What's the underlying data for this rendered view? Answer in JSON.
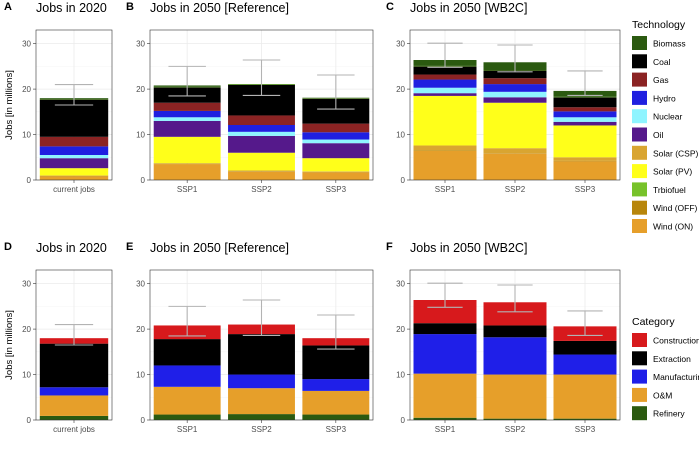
{
  "colors": {
    "Biomass": "#2b5a10",
    "Coal": "#000000",
    "Gas": "#8b2323",
    "Hydro": "#1f1fe0",
    "Nuclear": "#8ff4ff",
    "Oil": "#55198b",
    "Solar (CSP)": "#d9a531",
    "Solar (PV)": "#ffff1a",
    "Trbiofuel": "#77c22a",
    "Wind (OFF)": "#b8860b",
    "Wind (ON)": "#e69f2a",
    "Construction": "#d7191c",
    "Extraction": "#000000",
    "Manufacturing": "#1f1fe8",
    "O&M": "#e69f2a",
    "Refinery": "#2b5a10"
  },
  "legends": [
    {
      "title": "Technology",
      "entries": [
        "Biomass",
        "Coal",
        "Gas",
        "Hydro",
        "Nuclear",
        "Oil",
        "Solar (CSP)",
        "Solar (PV)",
        "Trbiofuel",
        "Wind (OFF)",
        "Wind (ON)"
      ]
    },
    {
      "title": "Category",
      "entries": [
        "Construction",
        "Extraction",
        "Manufacturing",
        "O&M",
        "Refinery"
      ]
    }
  ],
  "chart_data": [
    {
      "letter": "A",
      "title": "Jobs in 2020",
      "type": "bar",
      "stacked": true,
      "ylabel": "Jobs [in millions]",
      "ylim": [
        0,
        33
      ],
      "yticks": [
        0,
        10,
        20,
        30
      ],
      "categories": [
        "current jobs"
      ],
      "series": [
        {
          "name": "Wind (ON)",
          "values": [
            0.8
          ]
        },
        {
          "name": "Wind (OFF)",
          "values": [
            0.1
          ]
        },
        {
          "name": "Solar (CSP)",
          "values": [
            0.1
          ]
        },
        {
          "name": "Solar (PV)",
          "values": [
            1.6
          ]
        },
        {
          "name": "Oil",
          "values": [
            2.2
          ]
        },
        {
          "name": "Nuclear",
          "values": [
            0.7
          ]
        },
        {
          "name": "Hydro",
          "values": [
            1.9
          ]
        },
        {
          "name": "Gas",
          "values": [
            2.1
          ]
        },
        {
          "name": "Coal",
          "values": [
            8.2
          ]
        },
        {
          "name": "Trbiofuel",
          "values": [
            0.1
          ]
        },
        {
          "name": "Biomass",
          "values": [
            0.2
          ]
        }
      ],
      "errors": [
        {
          "low": 16.5,
          "high": 21.0
        }
      ]
    },
    {
      "letter": "B",
      "title": "Jobs in 2050 [Reference]",
      "type": "bar",
      "stacked": true,
      "ylim": [
        0,
        33
      ],
      "yticks": [
        0,
        10,
        20,
        30
      ],
      "categories": [
        "SSP1",
        "SSP2",
        "SSP3"
      ],
      "series": [
        {
          "name": "Wind (ON)",
          "values": [
            3.5,
            1.8,
            1.7
          ]
        },
        {
          "name": "Wind (OFF)",
          "values": [
            0.1,
            0.1,
            0.1
          ]
        },
        {
          "name": "Solar (CSP)",
          "values": [
            0.1,
            0.2,
            0.1
          ]
        },
        {
          "name": "Solar (PV)",
          "values": [
            5.8,
            3.9,
            2.9
          ]
        },
        {
          "name": "Oil",
          "values": [
            3.5,
            3.7,
            3.3
          ]
        },
        {
          "name": "Nuclear",
          "values": [
            0.8,
            0.9,
            0.8
          ]
        },
        {
          "name": "Hydro",
          "values": [
            1.4,
            1.5,
            1.6
          ]
        },
        {
          "name": "Gas",
          "values": [
            1.8,
            2.1,
            1.9
          ]
        },
        {
          "name": "Coal",
          "values": [
            3.4,
            6.7,
            5.5
          ]
        },
        {
          "name": "Trbiofuel",
          "values": [
            0.1,
            0.1,
            0.1
          ]
        },
        {
          "name": "Biomass",
          "values": [
            0.3,
            0.1,
            0.1
          ]
        }
      ],
      "errors": [
        {
          "low": 18.5,
          "high": 25.0
        },
        {
          "low": 18.6,
          "high": 26.4
        },
        {
          "low": 15.6,
          "high": 23.1
        }
      ]
    },
    {
      "letter": "C",
      "title": "Jobs in 2050 [WB2C]",
      "type": "bar",
      "stacked": true,
      "ylim": [
        0,
        33
      ],
      "yticks": [
        0,
        10,
        20,
        30
      ],
      "categories": [
        "SSP1",
        "SSP2",
        "SSP3"
      ],
      "series": [
        {
          "name": "Wind (ON)",
          "values": [
            6.4,
            5.8,
            4.1
          ]
        },
        {
          "name": "Wind (OFF)",
          "values": [
            0.1,
            0.1,
            0.1
          ]
        },
        {
          "name": "Solar (CSP)",
          "values": [
            1.1,
            1.1,
            0.8
          ]
        },
        {
          "name": "Solar (PV)",
          "values": [
            10.9,
            10.0,
            7.0
          ]
        },
        {
          "name": "Oil",
          "values": [
            0.6,
            1.2,
            0.8
          ]
        },
        {
          "name": "Nuclear",
          "values": [
            1.2,
            1.2,
            1.0
          ]
        },
        {
          "name": "Hydro",
          "values": [
            1.8,
            1.7,
            1.3
          ]
        },
        {
          "name": "Gas",
          "values": [
            1.1,
            1.3,
            0.9
          ]
        },
        {
          "name": "Coal",
          "values": [
            1.8,
            1.7,
            2.2
          ]
        },
        {
          "name": "Trbiofuel",
          "values": [
            0.1,
            0.1,
            0.1
          ]
        },
        {
          "name": "Biomass",
          "values": [
            1.3,
            1.7,
            1.3
          ]
        }
      ],
      "errors": [
        {
          "low": 24.8,
          "high": 30.1
        },
        {
          "low": 23.8,
          "high": 29.7
        },
        {
          "low": 18.6,
          "high": 24.0
        }
      ]
    },
    {
      "letter": "D",
      "title": "Jobs in 2020",
      "type": "bar",
      "stacked": true,
      "ylabel": "Jobs [in millions]",
      "ylim": [
        0,
        33
      ],
      "yticks": [
        0,
        10,
        20,
        30
      ],
      "categories": [
        "current jobs"
      ],
      "series": [
        {
          "name": "Refinery",
          "values": [
            0.9
          ]
        },
        {
          "name": "O&M",
          "values": [
            4.5
          ]
        },
        {
          "name": "Manufacturing",
          "values": [
            1.8
          ]
        },
        {
          "name": "Extraction",
          "values": [
            9.6
          ]
        },
        {
          "name": "Construction",
          "values": [
            1.2
          ]
        }
      ],
      "errors": [
        {
          "low": 16.5,
          "high": 21.0
        }
      ]
    },
    {
      "letter": "E",
      "title": "Jobs in 2050 [Reference]",
      "type": "bar",
      "stacked": true,
      "ylim": [
        0,
        33
      ],
      "yticks": [
        0,
        10,
        20,
        30
      ],
      "categories": [
        "SSP1",
        "SSP2",
        "SSP3"
      ],
      "series": [
        {
          "name": "Refinery",
          "values": [
            1.2,
            1.3,
            1.2
          ]
        },
        {
          "name": "O&M",
          "values": [
            6.1,
            5.7,
            5.2
          ]
        },
        {
          "name": "Manufacturing",
          "values": [
            4.7,
            3.0,
            2.6
          ]
        },
        {
          "name": "Extraction",
          "values": [
            5.8,
            8.9,
            7.4
          ]
        },
        {
          "name": "Construction",
          "values": [
            3.0,
            2.1,
            1.6
          ]
        }
      ],
      "errors": [
        {
          "low": 18.5,
          "high": 25.0
        },
        {
          "low": 18.6,
          "high": 26.4
        },
        {
          "low": 15.6,
          "high": 23.1
        }
      ]
    },
    {
      "letter": "F",
      "title": "Jobs in 2050 [WB2C]",
      "type": "bar",
      "stacked": true,
      "ylim": [
        0,
        33
      ],
      "yticks": [
        0,
        10,
        20,
        30
      ],
      "categories": [
        "SSP1",
        "SSP2",
        "SSP3"
      ],
      "series": [
        {
          "name": "Refinery",
          "values": [
            0.5,
            0.3,
            0.3
          ]
        },
        {
          "name": "O&M",
          "values": [
            9.7,
            9.7,
            9.7
          ]
        },
        {
          "name": "Manufacturing",
          "values": [
            8.7,
            8.2,
            4.4
          ]
        },
        {
          "name": "Extraction",
          "values": [
            2.4,
            2.6,
            3.0
          ]
        },
        {
          "name": "Construction",
          "values": [
            5.1,
            5.1,
            3.2
          ]
        }
      ],
      "errors": [
        {
          "low": 24.8,
          "high": 30.1
        },
        {
          "low": 23.8,
          "high": 29.7
        },
        {
          "low": 18.6,
          "high": 24.0
        }
      ]
    }
  ]
}
